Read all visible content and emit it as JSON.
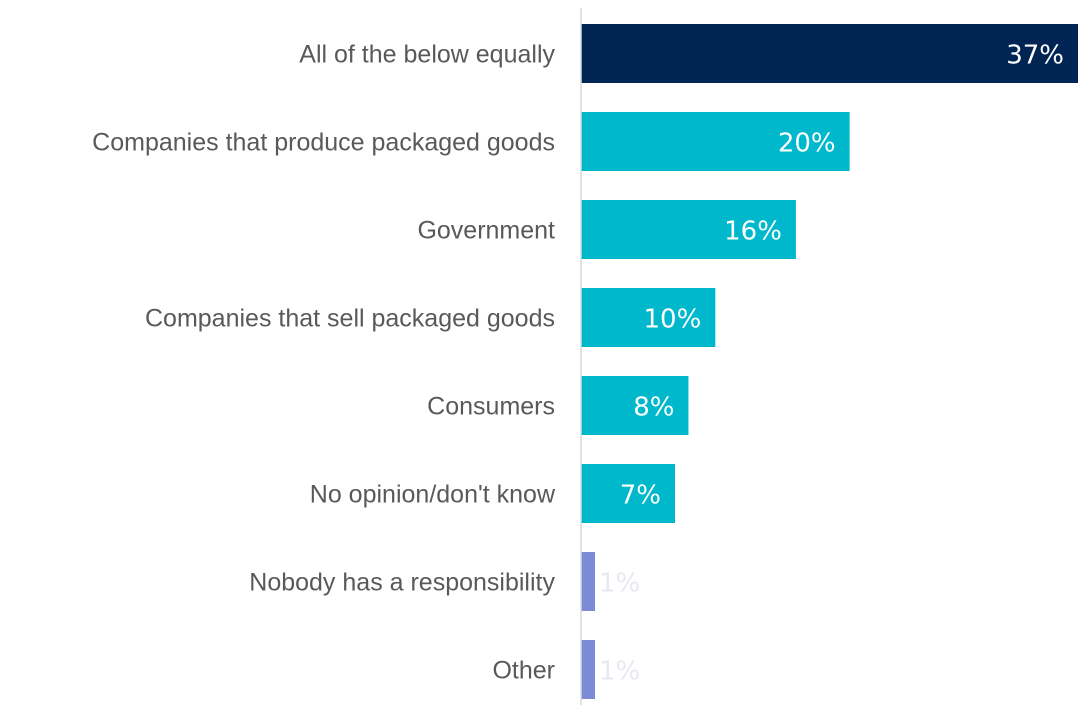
{
  "chart_data": {
    "type": "bar",
    "orientation": "horizontal",
    "categories": [
      "All of the below equally",
      "Companies that produce packaged goods",
      "Government",
      "Companies that sell packaged goods",
      "Consumers",
      "No opinion/don't know",
      "Nobody has a responsibility",
      "Other"
    ],
    "values": [
      37,
      20,
      16,
      10,
      8,
      7,
      1,
      1
    ],
    "value_labels": [
      "37%",
      "20%",
      "16%",
      "10%",
      "8%",
      "7%",
      "1%",
      "1%"
    ],
    "colors": [
      "#002554",
      "#00b8cc",
      "#00b8cc",
      "#00b8cc",
      "#00b8cc",
      "#00b8cc",
      "#7b8bd6",
      "#7b8bd6"
    ],
    "axis_color": "#d9d9d9",
    "xlim": [
      0,
      37
    ],
    "grid": false,
    "legend": "none"
  }
}
